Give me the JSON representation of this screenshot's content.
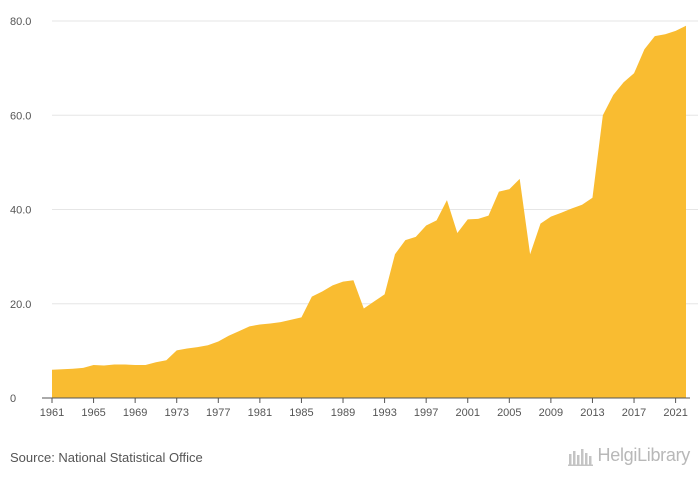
{
  "chart_data": {
    "type": "area",
    "title": "",
    "xlabel": "",
    "ylabel": "",
    "x": [
      1961,
      1962,
      1963,
      1964,
      1965,
      1966,
      1967,
      1968,
      1969,
      1970,
      1971,
      1972,
      1973,
      1974,
      1975,
      1976,
      1977,
      1978,
      1979,
      1980,
      1981,
      1982,
      1983,
      1984,
      1985,
      1986,
      1987,
      1988,
      1989,
      1990,
      1991,
      1992,
      1993,
      1994,
      1995,
      1996,
      1997,
      1998,
      1999,
      2000,
      2001,
      2002,
      2003,
      2004,
      2005,
      2006,
      2007,
      2008,
      2009,
      2010,
      2011,
      2012,
      2013,
      2014,
      2015,
      2016,
      2017,
      2018,
      2019,
      2020,
      2021,
      2022
    ],
    "series": [
      {
        "values": [
          6.0,
          6.1,
          6.2,
          6.4,
          7.0,
          6.9,
          7.1,
          7.1,
          7.0,
          7.0,
          7.6,
          8.0,
          10.1,
          10.5,
          10.8,
          11.2,
          12.0,
          13.2,
          14.2,
          15.2,
          15.6,
          15.8,
          16.1,
          16.6,
          17.1,
          21.5,
          22.6,
          23.9,
          24.7,
          25.0,
          19.0,
          20.5,
          22.0,
          30.5,
          33.5,
          34.2,
          36.6,
          37.7,
          42.0,
          35.0,
          37.9,
          38.0,
          38.7,
          43.8,
          44.3,
          46.5,
          30.5,
          37.0,
          38.5,
          39.3,
          40.2,
          41.0,
          42.5,
          60.0,
          64.3,
          67.0,
          68.9,
          74.0,
          76.8,
          77.2,
          77.9,
          79.0
        ]
      }
    ],
    "ylim": [
      0,
      80
    ],
    "yticks": [
      "0",
      "20.0",
      "40.0",
      "60.0",
      "80.0"
    ],
    "xticks": [
      "1961",
      "1965",
      "1969",
      "1973",
      "1977",
      "1981",
      "1985",
      "1989",
      "1993",
      "1997",
      "2001",
      "2005",
      "2009",
      "2013",
      "2017",
      "2021"
    ],
    "grid": true,
    "colors": {
      "fill": "#F9BC31",
      "grid": "#E6E6E6",
      "axis": "#555555"
    }
  },
  "footer": {
    "source": "Source: National Statistical Office",
    "brand": "HelgiLibrary"
  }
}
